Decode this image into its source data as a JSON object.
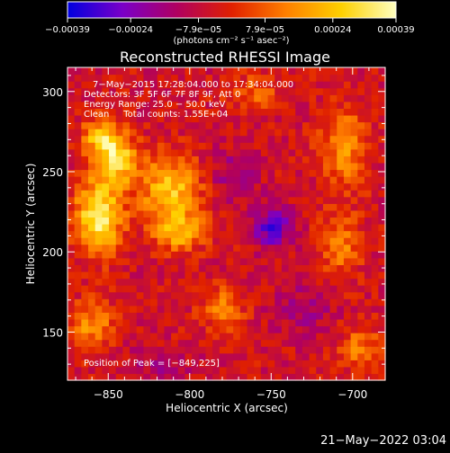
{
  "chart_data": {
    "type": "heatmap",
    "title": "Reconstructed RHESSI Image",
    "xlabel": "Heliocentric X (arcsec)",
    "ylabel": "Heliocentric Y (arcsec)",
    "xlim": [
      -875,
      -680
    ],
    "ylim": [
      120,
      315
    ],
    "xticks": [
      -850,
      -800,
      -750,
      -700
    ],
    "xtick_labels": [
      "−850",
      "−800",
      "−750",
      "−700"
    ],
    "yticks": [
      150,
      200,
      250,
      300
    ],
    "ytick_labels": [
      "150",
      "200",
      "250",
      "300"
    ],
    "colorbar": {
      "range": [
        -0.00039,
        0.00039
      ],
      "ticks": [
        -0.00039,
        -0.00024,
        -7.9e-05,
        7.9e-05,
        0.00024,
        0.00039
      ],
      "tick_labels": [
        "−0.00039",
        "−0.00024",
        "−7.9e−05",
        "7.9e−05",
        "0.00024",
        "0.00039"
      ],
      "unit_label": "(photons cm⁻² s⁻¹ asec⁻²)",
      "colors": [
        "#0000e0",
        "#7a00c8",
        "#b00060",
        "#e02000",
        "#ff8000",
        "#ffd000",
        "#ffffc0"
      ]
    },
    "annotations": [
      "7−May−2015 17:28:04.000 to 17:34:04.000",
      "Detectors: 3F 5F 6F 7F 8F 9F, Att 0",
      "Energy Range: 25.0 − 50.0 keV",
      "Clean     Total counts: 1.55E+04"
    ],
    "peak_label": "Position of Peak = [−849,225]",
    "peak": {
      "x": -849,
      "y": 225
    },
    "sources": [
      {
        "x": -856,
        "y": 222,
        "amp": 0.0004,
        "sx": 10,
        "sy": 16
      },
      {
        "x": -845,
        "y": 258,
        "amp": 0.00033,
        "sx": 9,
        "sy": 11
      },
      {
        "x": -855,
        "y": 272,
        "amp": 0.00025,
        "sx": 8,
        "sy": 8
      },
      {
        "x": -812,
        "y": 238,
        "amp": 0.0003,
        "sx": 13,
        "sy": 15
      },
      {
        "x": -806,
        "y": 212,
        "amp": 0.00022,
        "sx": 11,
        "sy": 8
      },
      {
        "x": -860,
        "y": 155,
        "amp": 0.0002,
        "sx": 10,
        "sy": 10
      },
      {
        "x": -780,
        "y": 165,
        "amp": 0.00018,
        "sx": 9,
        "sy": 9
      },
      {
        "x": -705,
        "y": 265,
        "amp": 0.0002,
        "sx": 10,
        "sy": 18
      },
      {
        "x": -708,
        "y": 205,
        "amp": 0.00018,
        "sx": 9,
        "sy": 14
      },
      {
        "x": -695,
        "y": 140,
        "amp": 0.00016,
        "sx": 9,
        "sy": 10
      },
      {
        "x": -760,
        "y": 300,
        "amp": 0.00012,
        "sx": 12,
        "sy": 8
      },
      {
        "x": -749,
        "y": 215,
        "amp": -0.00024,
        "sx": 9,
        "sy": 9
      },
      {
        "x": -772,
        "y": 248,
        "amp": -0.00012,
        "sx": 11,
        "sy": 11
      },
      {
        "x": -730,
        "y": 165,
        "amp": -0.0001,
        "sx": 12,
        "sy": 12
      },
      {
        "x": -820,
        "y": 130,
        "amp": -8e-05,
        "sx": 14,
        "sy": 8
      }
    ],
    "background_level": -5e-05
  },
  "footer": {
    "date": "21−May−2022 03:04"
  }
}
